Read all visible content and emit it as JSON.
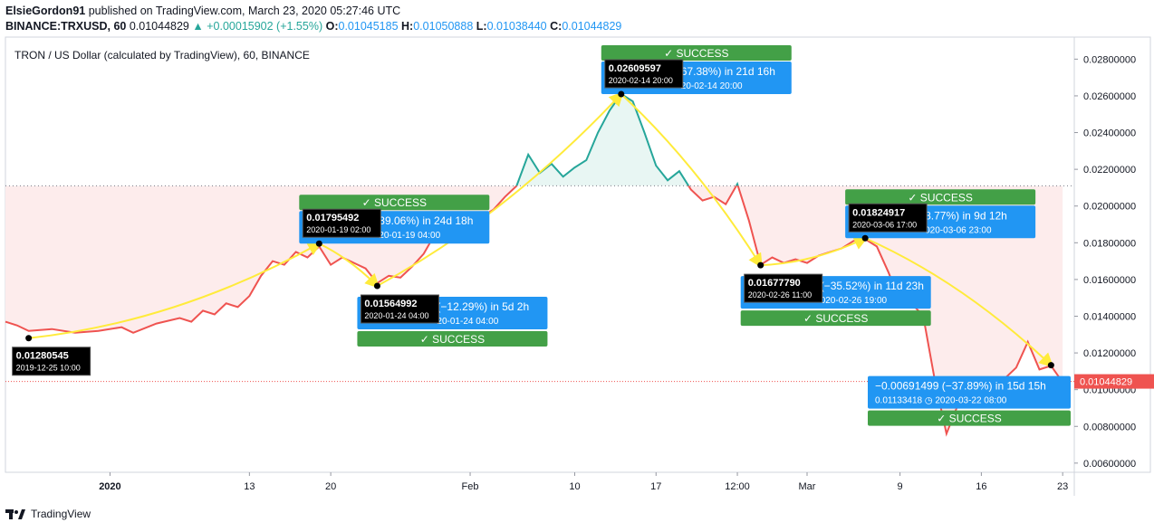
{
  "header": {
    "author": "ElsieGordon91",
    "published_text": "published on TradingView.com, March 23, 2020 05:27:46 UTC",
    "symbol": "BINANCE:TRXUSD, 60",
    "last": "0.01044829",
    "change": "+0.00015902 (+1.55%)",
    "open_label": "O:",
    "open": "0.01045185",
    "high_label": "H:",
    "high": "0.01050888",
    "low_label": "L:",
    "low": "0.01038440",
    "close_label": "C:",
    "close": "0.01044829"
  },
  "footer": {
    "brand": "TradingView"
  },
  "chart_data": {
    "type": "line",
    "title": "TRON / US Dollar (calculated by TradingView), 60, BINANCE",
    "y_range": [
      0.0055,
      0.0292
    ],
    "y_ticks": [
      0.028,
      0.026,
      0.024,
      0.022,
      0.02,
      0.018,
      0.016,
      0.014,
      0.012,
      0.01,
      0.008,
      0.006
    ],
    "y_tick_labels": [
      "0.02800000",
      "0.02600000",
      "0.02400000",
      "0.02200000",
      "0.02000000",
      "0.01800000",
      "0.01600000",
      "0.01400000",
      "0.01200000",
      "0.01000000",
      "0.00800000",
      "0.00600000"
    ],
    "x_range": [
      "2019-12-23",
      "2020-03-24"
    ],
    "x_ticks": [
      {
        "date": "2020-01-01",
        "label": "2020",
        "bold": true
      },
      {
        "date": "2020-01-13",
        "label": "13"
      },
      {
        "date": "2020-01-20",
        "label": "20"
      },
      {
        "date": "2020-02-01",
        "label": "Feb"
      },
      {
        "date": "2020-02-10",
        "label": "10"
      },
      {
        "date": "2020-02-17",
        "label": "17"
      },
      {
        "date": "2020-02-24",
        "label": "12:00"
      },
      {
        "date": "2020-03-01",
        "label": "Mar"
      },
      {
        "date": "2020-03-09",
        "label": "9"
      },
      {
        "date": "2020-03-16",
        "label": "16"
      },
      {
        "date": "2020-03-23",
        "label": "23"
      }
    ],
    "current_price": 0.01044829,
    "current_price_label": "0.01044829",
    "threshold_price": 0.0211,
    "series": [
      {
        "points": [
          [
            "2019-12-23",
            0.0137
          ],
          [
            "2019-12-24",
            0.0135
          ],
          [
            "2019-12-25",
            0.0132
          ],
          [
            "2019-12-27",
            0.0133
          ],
          [
            "2019-12-29",
            0.0131
          ],
          [
            "2019-12-31",
            0.0132
          ],
          [
            "2020-01-02",
            0.0134
          ],
          [
            "2020-01-03",
            0.0131
          ],
          [
            "2020-01-05",
            0.0136
          ],
          [
            "2020-01-07",
            0.0139
          ],
          [
            "2020-01-08",
            0.0137
          ],
          [
            "2020-01-09",
            0.0143
          ],
          [
            "2020-01-10",
            0.0141
          ],
          [
            "2020-01-11",
            0.0147
          ],
          [
            "2020-01-12",
            0.0145
          ],
          [
            "2020-01-13",
            0.0151
          ],
          [
            "2020-01-14",
            0.0162
          ],
          [
            "2020-01-15",
            0.017
          ],
          [
            "2020-01-16",
            0.0168
          ],
          [
            "2020-01-17",
            0.0175
          ],
          [
            "2020-01-18",
            0.0172
          ],
          [
            "2020-01-19",
            0.0178
          ],
          [
            "2020-01-20",
            0.0168
          ],
          [
            "2020-01-21",
            0.0172
          ],
          [
            "2020-01-22",
            0.0169
          ],
          [
            "2020-01-23",
            0.0166
          ],
          [
            "2020-01-24",
            0.0158
          ],
          [
            "2020-01-25",
            0.0162
          ],
          [
            "2020-01-26",
            0.0161
          ],
          [
            "2020-01-27",
            0.0167
          ],
          [
            "2020-01-28",
            0.0174
          ],
          [
            "2020-01-29",
            0.0185
          ],
          [
            "2020-01-30",
            0.0182
          ],
          [
            "2020-01-31",
            0.0187
          ],
          [
            "2020-02-01",
            0.019
          ],
          [
            "2020-02-02",
            0.0194
          ],
          [
            "2020-02-03",
            0.0198
          ],
          [
            "2020-02-04",
            0.0205
          ],
          [
            "2020-02-05",
            0.0211
          ],
          [
            "2020-02-06",
            0.0228
          ],
          [
            "2020-02-07",
            0.0218
          ],
          [
            "2020-02-08",
            0.0223
          ],
          [
            "2020-02-09",
            0.0216
          ],
          [
            "2020-02-10",
            0.0221
          ],
          [
            "2020-02-11",
            0.0225
          ],
          [
            "2020-02-12",
            0.024
          ],
          [
            "2020-02-13",
            0.0252
          ],
          [
            "2020-02-14",
            0.0261
          ],
          [
            "2020-02-15",
            0.0257
          ],
          [
            "2020-02-16",
            0.024
          ],
          [
            "2020-02-17",
            0.0222
          ],
          [
            "2020-02-18",
            0.0214
          ],
          [
            "2020-02-19",
            0.0219
          ],
          [
            "2020-02-20",
            0.0209
          ],
          [
            "2020-02-21",
            0.0203
          ],
          [
            "2020-02-22",
            0.0205
          ],
          [
            "2020-02-23",
            0.0201
          ],
          [
            "2020-02-24",
            0.0212
          ],
          [
            "2020-02-25",
            0.0192
          ],
          [
            "2020-02-26",
            0.0168
          ],
          [
            "2020-02-27",
            0.0172
          ],
          [
            "2020-02-28",
            0.0169
          ],
          [
            "2020-02-29",
            0.0171
          ],
          [
            "2020-03-01",
            0.0169
          ],
          [
            "2020-03-02",
            0.0173
          ],
          [
            "2020-03-03",
            0.0175
          ],
          [
            "2020-03-04",
            0.0177
          ],
          [
            "2020-03-05",
            0.0181
          ],
          [
            "2020-03-06",
            0.0182
          ],
          [
            "2020-03-07",
            0.0178
          ],
          [
            "2020-03-08",
            0.0164
          ],
          [
            "2020-03-09",
            0.0148
          ],
          [
            "2020-03-10",
            0.0147
          ],
          [
            "2020-03-11",
            0.014
          ],
          [
            "2020-03-12",
            0.0105
          ],
          [
            "2020-03-13",
            0.0076
          ],
          [
            "2020-03-14",
            0.0092
          ],
          [
            "2020-03-15",
            0.0094
          ],
          [
            "2020-03-16",
            0.01
          ],
          [
            "2020-03-17",
            0.0102
          ],
          [
            "2020-03-18",
            0.0106
          ],
          [
            "2020-03-19",
            0.0112
          ],
          [
            "2020-03-20",
            0.0126
          ],
          [
            "2020-03-21",
            0.0111
          ],
          [
            "2020-03-22",
            0.0113
          ],
          [
            "2020-03-23",
            0.0104
          ]
        ]
      }
    ],
    "pivots": [
      {
        "date": "2019-12-25",
        "price": 0.01280545,
        "label_price": "0.01280545",
        "label_time": "2019-12-25 10:00",
        "label_pos": "below"
      },
      {
        "date": "2020-01-19",
        "price": 0.01795492,
        "label_price": "0.01795492",
        "label_time": "2020-01-19 02:00",
        "label_pos": "above"
      },
      {
        "date": "2020-01-24",
        "price": 0.01564992,
        "label_price": "0.01564992",
        "label_time": "2020-01-24 04:00",
        "label_pos": "below"
      },
      {
        "date": "2020-02-14",
        "price": 0.02609597,
        "label_price": "0.02609597",
        "label_time": "2020-02-14 20:00",
        "label_pos": "above"
      },
      {
        "date": "2020-02-26",
        "price": 0.0167779,
        "label_price": "0.01677790",
        "label_time": "2020-02-26 11:00",
        "label_pos": "below"
      },
      {
        "date": "2020-03-06",
        "price": 0.01824917,
        "label_price": "0.01824917",
        "label_time": "2020-03-06 17:00",
        "label_pos": "above"
      },
      {
        "date": "2020-03-22",
        "price": 0.01133418,
        "label_price": "",
        "label_time": "",
        "label_pos": "none"
      }
    ],
    "annotations": [
      {
        "line1": "39.06%) in 24d 18h",
        "line2": "20-01-19  04:00",
        "success": "✓ SUCCESS",
        "success_pos": "above"
      },
      {
        "line1": "(−12.29%) in 5d 2h",
        "line2": "20-01-24  04:00",
        "success": "✓ SUCCESS",
        "success_pos": "below"
      },
      {
        "line1": "67.38%) in 21d 16h",
        "line2": "20-02-14  20:00",
        "success": "✓ SUCCESS",
        "success_pos": "above"
      },
      {
        "line1": "(−35.52%) in 11d 23h",
        "line2": "020-02-26  19:00",
        "success": "✓ SUCCESS",
        "success_pos": "below"
      },
      {
        "line1": "8.77%) in 9d 12h",
        "line2": "020-03-06  23:00",
        "success": "✓ SUCCESS",
        "success_pos": "above"
      },
      {
        "line1": "−0.00691499 (−37.89%) in 15d 15h",
        "line2": "0.01133418 ◷ 2020-03-22  08:00",
        "success": "✓ SUCCESS",
        "success_pos": "below"
      }
    ],
    "colors": {
      "above": "#26a69a",
      "below": "#ef5350",
      "fill_above": "#e8f6f3",
      "fill_below": "#fdecec",
      "arrow": "#ffeb3b",
      "success": "#43a047",
      "stat_box": "#2196f3",
      "pivot_label": "#000000",
      "price_tag": "#ef5350"
    }
  }
}
